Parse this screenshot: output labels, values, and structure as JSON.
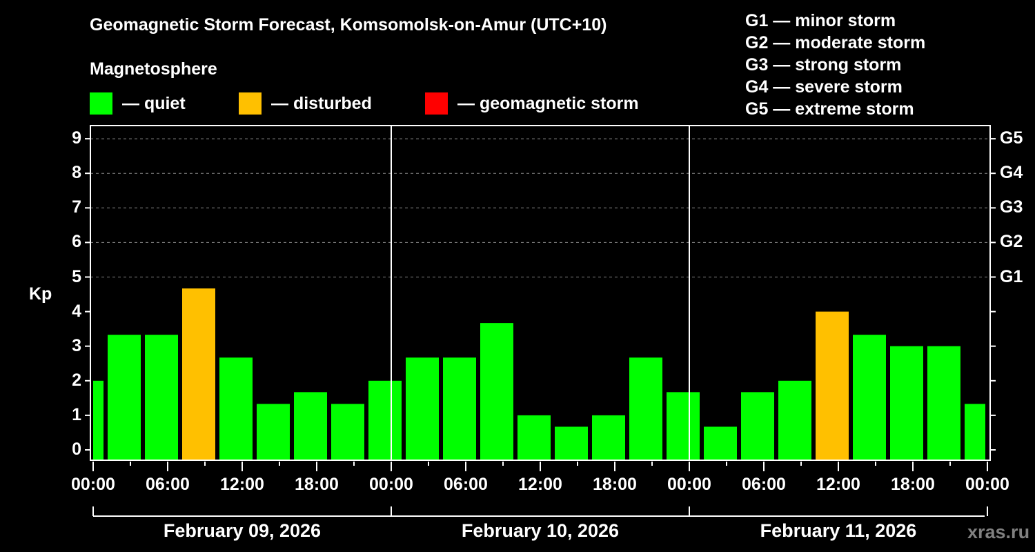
{
  "header": {
    "title": "Geomagnetic Storm Forecast, Komsomolsk-on-Amur (UTC+10)",
    "subtitle": "Magnetosphere"
  },
  "legend": [
    {
      "label": "— quiet",
      "color": "#00ff00"
    },
    {
      "label": "— disturbed",
      "color": "#ffc000"
    },
    {
      "label": "— geomagnetic storm",
      "color": "#ff0000"
    }
  ],
  "g_scale_legend": [
    "G1 — minor storm",
    "G2 — moderate storm",
    "G3 — strong storm",
    "G4 — severe storm",
    "G5 — extreme storm"
  ],
  "watermark": "xras.ru",
  "chart_data": {
    "type": "bar",
    "title": "Geomagnetic Storm Forecast, Komsomolsk-on-Amur (UTC+10)",
    "ylabel": "Kp",
    "xlabel": "",
    "ylim": [
      0,
      9
    ],
    "yticks": [
      "0",
      "1",
      "2",
      "3",
      "4",
      "5",
      "6",
      "7",
      "8",
      "9"
    ],
    "right_ticks": [
      {
        "kp": 5,
        "label": "G1"
      },
      {
        "kp": 6,
        "label": "G2"
      },
      {
        "kp": 7,
        "label": "G3"
      },
      {
        "kp": 8,
        "label": "G4"
      },
      {
        "kp": 9,
        "label": "G5"
      }
    ],
    "xticks": [
      "00:00",
      "06:00",
      "12:00",
      "18:00",
      "00:00",
      "06:00",
      "12:00",
      "18:00",
      "00:00",
      "06:00",
      "12:00",
      "18:00",
      "00:00"
    ],
    "dates": [
      "February 09, 2026",
      "February 10, 2026",
      "February 11, 2026"
    ],
    "grid": "dashed horizontal at Kp 5-9",
    "legend_position": "top",
    "thresholds": {
      "quiet": "<4",
      "disturbed": "4 to <5",
      "storm": ">=5"
    },
    "bars": [
      {
        "time": "Feb 09 00:00",
        "kp": 2.0,
        "status": "quiet"
      },
      {
        "time": "Feb 09 03:00",
        "kp": 3.33,
        "status": "quiet"
      },
      {
        "time": "Feb 09 06:00",
        "kp": 3.33,
        "status": "quiet"
      },
      {
        "time": "Feb 09 09:00",
        "kp": 4.67,
        "status": "disturbed"
      },
      {
        "time": "Feb 09 12:00",
        "kp": 2.67,
        "status": "quiet"
      },
      {
        "time": "Feb 09 15:00",
        "kp": 1.33,
        "status": "quiet"
      },
      {
        "time": "Feb 09 18:00",
        "kp": 1.67,
        "status": "quiet"
      },
      {
        "time": "Feb 09 21:00",
        "kp": 1.33,
        "status": "quiet"
      },
      {
        "time": "Feb 10 00:00",
        "kp": 2.0,
        "status": "quiet"
      },
      {
        "time": "Feb 10 03:00",
        "kp": 2.67,
        "status": "quiet"
      },
      {
        "time": "Feb 10 06:00",
        "kp": 2.67,
        "status": "quiet"
      },
      {
        "time": "Feb 10 09:00",
        "kp": 3.67,
        "status": "quiet"
      },
      {
        "time": "Feb 10 12:00",
        "kp": 1.0,
        "status": "quiet"
      },
      {
        "time": "Feb 10 15:00",
        "kp": 0.67,
        "status": "quiet"
      },
      {
        "time": "Feb 10 18:00",
        "kp": 1.0,
        "status": "quiet"
      },
      {
        "time": "Feb 10 21:00",
        "kp": 2.67,
        "status": "quiet"
      },
      {
        "time": "Feb 11 00:00",
        "kp": 1.67,
        "status": "quiet"
      },
      {
        "time": "Feb 11 03:00",
        "kp": 0.67,
        "status": "quiet"
      },
      {
        "time": "Feb 11 06:00",
        "kp": 1.67,
        "status": "quiet"
      },
      {
        "time": "Feb 11 09:00",
        "kp": 2.0,
        "status": "quiet"
      },
      {
        "time": "Feb 11 12:00",
        "kp": 4.0,
        "status": "disturbed"
      },
      {
        "time": "Feb 11 15:00",
        "kp": 3.33,
        "status": "quiet"
      },
      {
        "time": "Feb 11 18:00",
        "kp": 3.0,
        "status": "quiet"
      },
      {
        "time": "Feb 11 21:00",
        "kp": 3.0,
        "status": "quiet"
      },
      {
        "time": "Feb 12 00:00",
        "kp": 1.33,
        "status": "quiet"
      }
    ],
    "first_bar_partial": {
      "kp": 2.0,
      "status": "quiet"
    },
    "colors": {
      "quiet": "#00ff00",
      "disturbed": "#ffc000",
      "storm": "#ff0000"
    }
  }
}
